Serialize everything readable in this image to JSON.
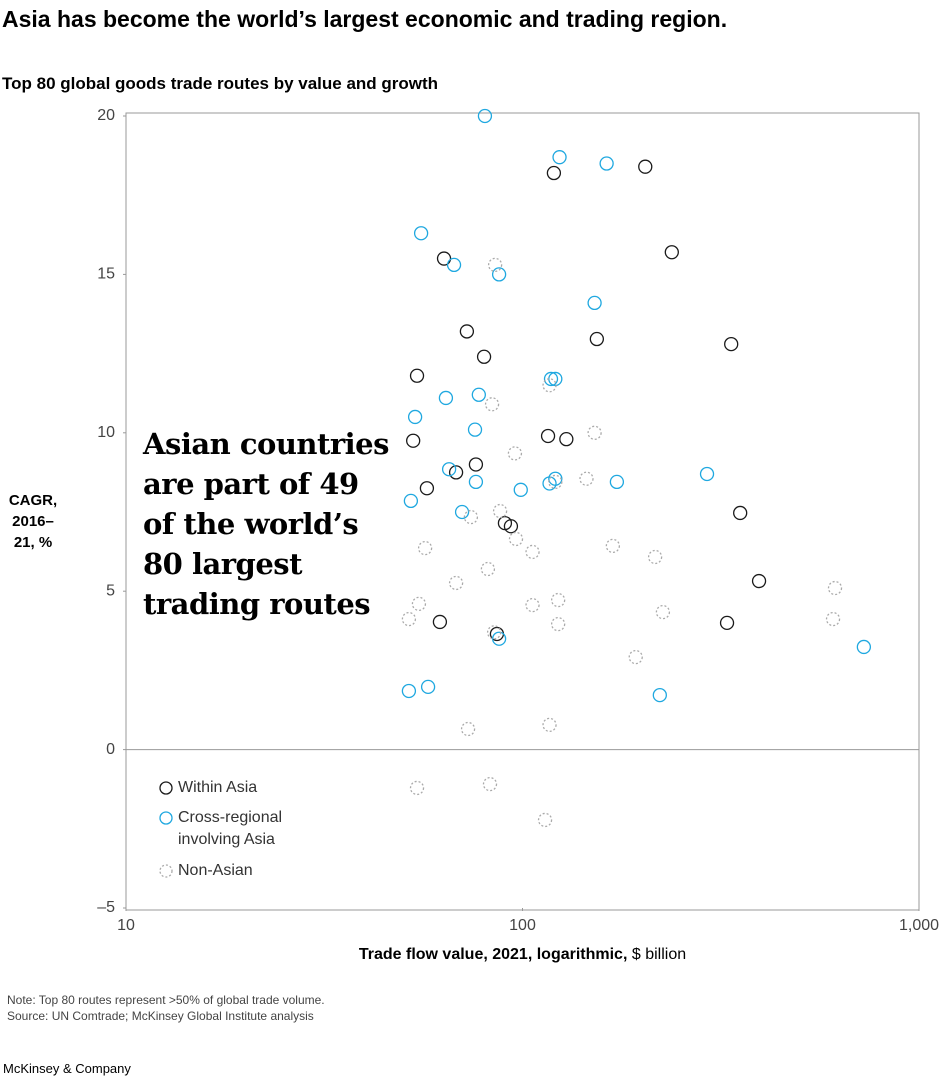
{
  "chart_data": {
    "type": "scatter",
    "title": "Asia has become the world’s largest economic and trading region.",
    "subtitle": "Top 80 global goods trade routes by value and growth",
    "ylabel": "CAGR, 2016–21, %",
    "xlabel": "Trade flow value, 2021, logarithmic,",
    "xlabel_unit": "$ billion",
    "annotation": "Asian countries are part of 49 of the world’s 80 largest trading routes",
    "note": "Note: Top 80 routes represent >50% of global trade volume.",
    "source": "Source: UN Comtrade; McKinsey Global Institute analysis",
    "brand": "McKinsey & Company",
    "xscale": "log",
    "xlim": [
      10,
      1000
    ],
    "xticks": [
      10,
      100,
      {
        "value": 1000,
        "label": "1,000"
      }
    ],
    "ylim": [
      -5,
      20
    ],
    "yticks": [
      {
        "value": -5,
        "label": "–5"
      },
      0,
      5,
      10,
      15,
      20
    ],
    "zero_line": true,
    "legend": "lower left",
    "series": [
      {
        "name": "Within Asia",
        "color": "#1a1a1a",
        "dashed": false,
        "x": [
          120,
          204,
          63.4,
          238,
          72.4,
          154,
          336,
          80,
          54.2,
          53,
          116,
          129,
          76.3,
          68,
          57.4,
          90.3,
          93.5,
          354,
          395,
          61.9,
          86.2,
          328
        ],
        "values": [
          18.2,
          18.4,
          15.5,
          15.7,
          13.2,
          12.96,
          12.8,
          12.4,
          11.8,
          9.75,
          9.9,
          9.8,
          9.0,
          8.75,
          8.25,
          7.15,
          7.05,
          7.47,
          5.32,
          4.03,
          3.65,
          4.0
        ]
      },
      {
        "name": "Cross-regional involving Asia",
        "color": "#1fa8e0",
        "dashed": false,
        "x": [
          80.4,
          124,
          163,
          55.5,
          67.2,
          87.3,
          152,
          118,
          121,
          64.1,
          77.6,
          53.6,
          75.9,
          65.3,
          76.3,
          121,
          117,
          173,
          292,
          99,
          52.3,
          70.4,
          87.3,
          726,
          51.7,
          57.8,
          222
        ],
        "values": [
          20.0,
          18.7,
          18.5,
          16.3,
          15.3,
          15.0,
          14.1,
          11.7,
          11.7,
          11.1,
          11.2,
          10.5,
          10.1,
          8.85,
          8.45,
          8.55,
          8.4,
          8.45,
          8.7,
          8.2,
          7.85,
          7.5,
          3.5,
          3.24,
          1.85,
          1.98,
          1.72
        ]
      },
      {
        "name": "Non-Asian",
        "color": "#aaaaaa",
        "dashed": true,
        "x": [
          85.3,
          117,
          83.8,
          152,
          95.7,
          145,
          121,
          87.8,
          74.1,
          96.3,
          56.8,
          106,
          169,
          216,
          81.8,
          68,
          614,
          54.8,
          106,
          123,
          226,
          51.7,
          123,
          607,
          193,
          117,
          72.9,
          54.2,
          82.8,
          114,
          84.8
        ],
        "values": [
          15.3,
          11.5,
          10.9,
          10.0,
          9.35,
          8.55,
          8.45,
          7.53,
          7.34,
          6.65,
          6.36,
          6.24,
          6.43,
          6.08,
          5.7,
          5.26,
          5.1,
          4.6,
          4.56,
          4.72,
          4.34,
          4.12,
          3.96,
          4.12,
          2.92,
          0.78,
          0.65,
          -1.21,
          -1.09,
          -2.22,
          3.7
        ]
      }
    ]
  }
}
